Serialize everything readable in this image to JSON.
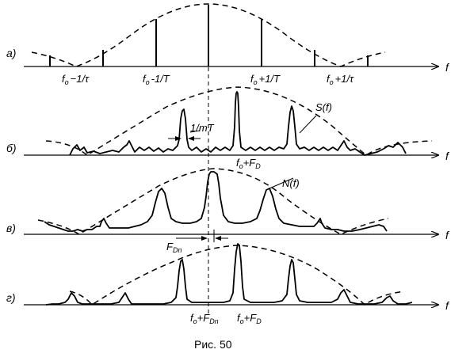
{
  "panels": [
    {
      "id": "a",
      "letter": "а)",
      "axis": "f",
      "ticks": [
        "f",
        "−1/τ",
        "f",
        "-1/T",
        "f",
        "+1/T",
        "f",
        "+1/τ"
      ],
      "sub": "o"
    },
    {
      "id": "b",
      "letter": "б)",
      "axis": "f",
      "spacing_label": "1/mT",
      "curve_label": "S(f)",
      "tick_f": "f",
      "tick_sub": "o",
      "tick_rest": "+F",
      "tick_rest_sub": "D"
    },
    {
      "id": "v",
      "letter": "в)",
      "axis": "f",
      "curve_label": "N(f)",
      "shift_main": "F",
      "shift_sub": "Dn"
    },
    {
      "id": "g",
      "letter": "г)",
      "axis": "f",
      "left_f": "f",
      "left_sub": "o",
      "left_rest": "+F",
      "left_rest_sub": "Dn",
      "right_f": "f",
      "right_sub": "o",
      "right_rest": "+F",
      "right_rest_sub": "D"
    }
  ],
  "caption": "Рис. 50"
}
